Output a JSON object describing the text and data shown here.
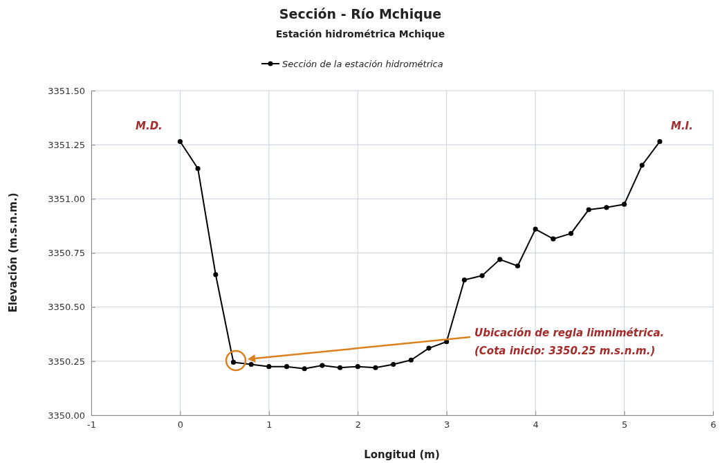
{
  "chart_data": {
    "type": "line",
    "title": "Sección - Río Mchique",
    "subtitle": "Estación hidrométrica Mchique",
    "xlabel": "Longitud (m)",
    "ylabel": "Elevación (m.s.n.m.)",
    "x": [
      0,
      0.2,
      0.4,
      0.6,
      0.8,
      1.0,
      1.2,
      1.4,
      1.6,
      1.8,
      2.0,
      2.2,
      2.4,
      2.6,
      2.8,
      3.0,
      3.2,
      3.4,
      3.6,
      3.8,
      4.0,
      4.2,
      4.4,
      4.6,
      4.8,
      5.0,
      5.2,
      5.4
    ],
    "series": [
      {
        "name": "Sección de la estación hidrométrica",
        "color": "#000000",
        "values": [
          3351.265,
          3351.14,
          3350.65,
          3350.245,
          3350.235,
          3350.225,
          3350.225,
          3350.215,
          3350.23,
          3350.22,
          3350.225,
          3350.22,
          3350.235,
          3350.255,
          3350.31,
          3350.34,
          3350.625,
          3350.645,
          3350.72,
          3350.69,
          3350.86,
          3350.815,
          3350.84,
          3350.95,
          3350.96,
          3350.975,
          3351.155,
          3351.265
        ]
      }
    ],
    "xlim": [
      -1,
      6
    ],
    "xticks": [
      -1,
      0,
      1,
      2,
      3,
      4,
      5,
      6
    ],
    "ylim": [
      3350,
      3351.5
    ],
    "yticks": [
      {
        "value": 3350,
        "label": "3350.00"
      },
      {
        "value": 3350.25,
        "label": "3350.25"
      },
      {
        "value": 3350.5,
        "label": "3350.50"
      },
      {
        "value": 3350.75,
        "label": "3350.75"
      },
      {
        "value": 3351,
        "label": "3351.00"
      },
      {
        "value": 3351.25,
        "label": "3351.25"
      },
      {
        "value": 3351.5,
        "label": "3351.50"
      }
    ],
    "annotations": [
      {
        "text": "M.D.",
        "x": 0,
        "y": 3351.265
      },
      {
        "text": "M.I.",
        "x": 5.4,
        "y": 3351.265
      },
      "Ubicación de regla limnimétrica.",
      "(Cota inicio: 3350.25 m.s.n.m.)"
    ],
    "grid": true,
    "legend": "top",
    "marker": "circle",
    "line_style": "solid"
  }
}
